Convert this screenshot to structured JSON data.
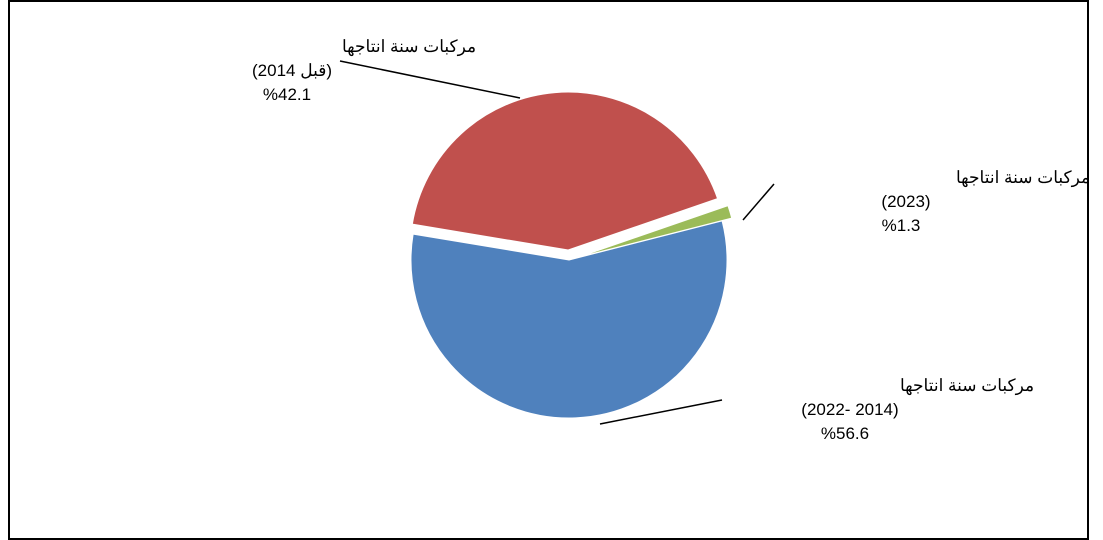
{
  "chart_data": {
    "type": "pie",
    "title": "",
    "legend": "none",
    "series": [
      {
        "values": [
          42.1,
          1.3,
          56.6
        ],
        "colors": [
          "#C0504D",
          "#9BBB59",
          "#4F81BD"
        ],
        "labels": [
          [
            "مركبات سنة انتاجها",
            "(قبل 2014)",
            "%42.1"
          ],
          [
            "مركبات سنة انتاجها",
            "(2023)",
            "%1.3"
          ],
          [
            "مركبات سنة انتاجها",
            "(2014 -2022)",
            "%56.6"
          ]
        ]
      }
    ]
  }
}
